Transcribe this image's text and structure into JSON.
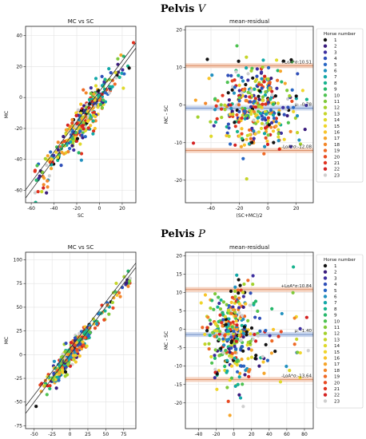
{
  "sections": [
    {
      "title_text": "Pelvis ",
      "title_var": "V"
    },
    {
      "title_text": "Pelvis ",
      "title_var": "P"
    }
  ],
  "legend": {
    "title": "Horse number",
    "labels": [
      "1",
      "2",
      "3",
      "4",
      "5",
      "6",
      "7",
      "8",
      "9",
      "10",
      "11",
      "12",
      "13",
      "14",
      "15",
      "16",
      "17",
      "18",
      "19",
      "20",
      "21",
      "22",
      "23"
    ],
    "colors": [
      "#111111",
      "#3a1b7d",
      "#3d2fa0",
      "#2f4fb8",
      "#2866c4",
      "#2291bf",
      "#13a8a8",
      "#17b38e",
      "#26b86b",
      "#4ec251",
      "#7fc93a",
      "#a3d12e",
      "#c6d52a",
      "#dfd92b",
      "#f0d52a",
      "#f8c42a",
      "#f6a52b",
      "#f3872a",
      "#ef6a26",
      "#e84a22",
      "#e03320",
      "#d42121",
      "#cfcfcf"
    ]
  },
  "chart_data": [
    {
      "type": "scatter",
      "title": "MC vs SC",
      "xlabel": "SC",
      "ylabel": "MC",
      "xlim": [
        -65,
        32
      ],
      "ylim": [
        -68,
        46
      ],
      "xticks": [
        -60,
        -40,
        -20,
        0,
        20
      ],
      "yticks": [
        -60,
        -40,
        -20,
        0,
        20,
        40
      ],
      "grid": true,
      "identity_line": true,
      "regression_line": true
    },
    {
      "type": "scatter",
      "title": "mean-residual",
      "xlabel": "(SC+MC)/2",
      "ylabel": "MC - SC",
      "xlim": [
        -58,
        32
      ],
      "ylim": [
        -26,
        21
      ],
      "xticks": [
        -40,
        -20,
        0,
        20
      ],
      "yticks": [
        -20,
        -10,
        0,
        10,
        20
      ],
      "grid": true,
      "lines": [
        {
          "label": "+LoA*σ:10.51",
          "value": 10.51
        },
        {
          "label": "μ: -0.78",
          "value": -0.78
        },
        {
          "label": "-LoA*σ:-12.08",
          "value": -12.08
        }
      ],
      "legend": "right"
    },
    {
      "type": "scatter",
      "title": "MC vs SC",
      "xlabel": "SC",
      "ylabel": "MC",
      "xlim": [
        -62,
        92
      ],
      "ylim": [
        -78,
        108
      ],
      "xticks": [
        -50,
        -25,
        0,
        25,
        50,
        75
      ],
      "yticks": [
        -75,
        -50,
        -25,
        0,
        25,
        50,
        75,
        100
      ],
      "grid": true,
      "identity_line": true,
      "regression_line": true
    },
    {
      "type": "scatter",
      "title": "mean-residual",
      "xlabel": "(SC+MC)/2",
      "ylabel": "MC - SC",
      "xlim": [
        -55,
        90
      ],
      "ylim": [
        -27,
        21
      ],
      "xticks": [
        -40,
        -20,
        0,
        20,
        40,
        60,
        80
      ],
      "yticks": [
        -20,
        -15,
        -10,
        -5,
        0,
        5,
        10,
        15,
        20
      ],
      "grid": true,
      "lines": [
        {
          "label": "+LoA*σ:10.84",
          "value": 10.84
        },
        {
          "label": "μ: -1.40",
          "value": -1.4
        },
        {
          "label": "-LoA*σ:-13.64",
          "value": -13.64
        }
      ],
      "legend": "right"
    }
  ]
}
